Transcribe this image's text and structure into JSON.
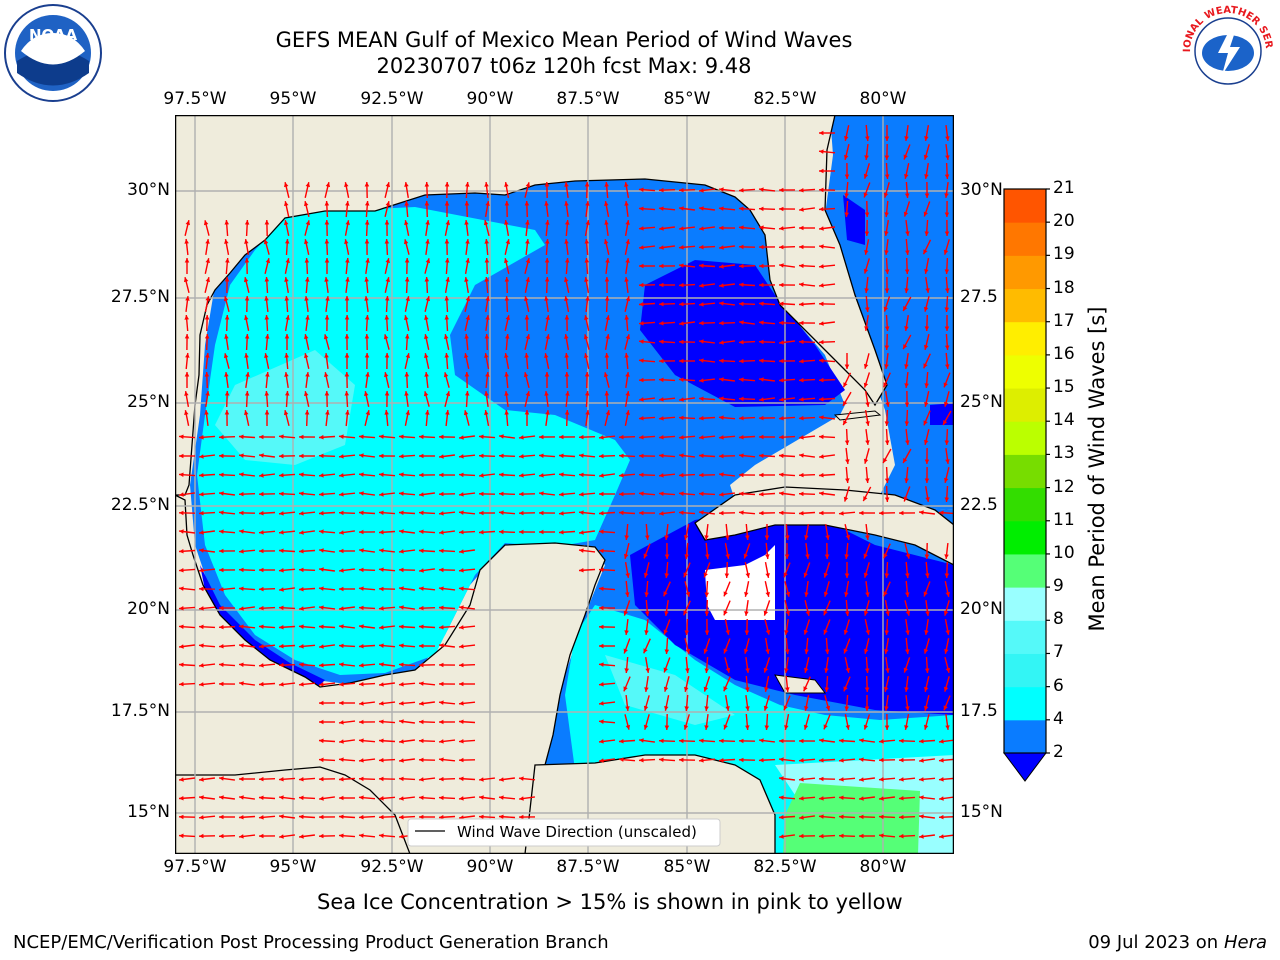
{
  "title": {
    "line1": "GEFS MEAN Gulf of Mexico Mean Period of Wind Waves",
    "line2": "20230707 t06z 120h fcst   Max: 9.48"
  },
  "axes": {
    "lon_labels": [
      "97.5°W",
      "95°W",
      "92.5°W",
      "90°W",
      "87.5°W",
      "85°W",
      "82.5°W",
      "80°W"
    ],
    "lat_labels_left": [
      "30°N",
      "27.5°N",
      "25°N",
      "22.5°N",
      "20°N",
      "17.5°N",
      "15°N"
    ],
    "lat_labels_right": [
      "30°N",
      "27.5",
      "25°N",
      "22.5",
      "20°N",
      "17.5",
      "15°N"
    ],
    "lon_range": [
      -98,
      -78.25
    ],
    "lat_range": [
      14,
      32
    ]
  },
  "legend": {
    "label": "Wind Wave Direction (unscaled)"
  },
  "colorbar": {
    "label": "Mean Period of Wind Waves [s]",
    "ticks": [
      "2",
      "4",
      "6",
      "7",
      "8",
      "9",
      "10",
      "11",
      "12",
      "13",
      "14",
      "15",
      "16",
      "17",
      "18",
      "19",
      "20",
      "21"
    ],
    "colors": [
      "#0a7cff",
      "#00ffff",
      "#33f5f5",
      "#55f9f9",
      "#99ffff",
      "#55ff77",
      "#00ee00",
      "#33dd00",
      "#77dd00",
      "#bbff00",
      "#ddee00",
      "#eeff00",
      "#ffee00",
      "#ffbb00",
      "#ff9900",
      "#ff7700",
      "#ff5500",
      "#ff3300",
      "#ff0000"
    ],
    "under_color": "#0000ff"
  },
  "map": {
    "land_color": "#efecdc",
    "arrow_color": "#ff0000",
    "grid_color": "#b0b0b0"
  },
  "note": "Sea Ice Concentration > 15% is shown in pink to yellow",
  "footer": {
    "left": "NCEP/EMC/Verification Post Processing Product Generation Branch",
    "right_date": "09 Jul 2023 on ",
    "right_machine": "Hera"
  },
  "logos": {
    "noaa": "NOAA",
    "nws": "NATIONAL WEATHER SERVICE"
  }
}
